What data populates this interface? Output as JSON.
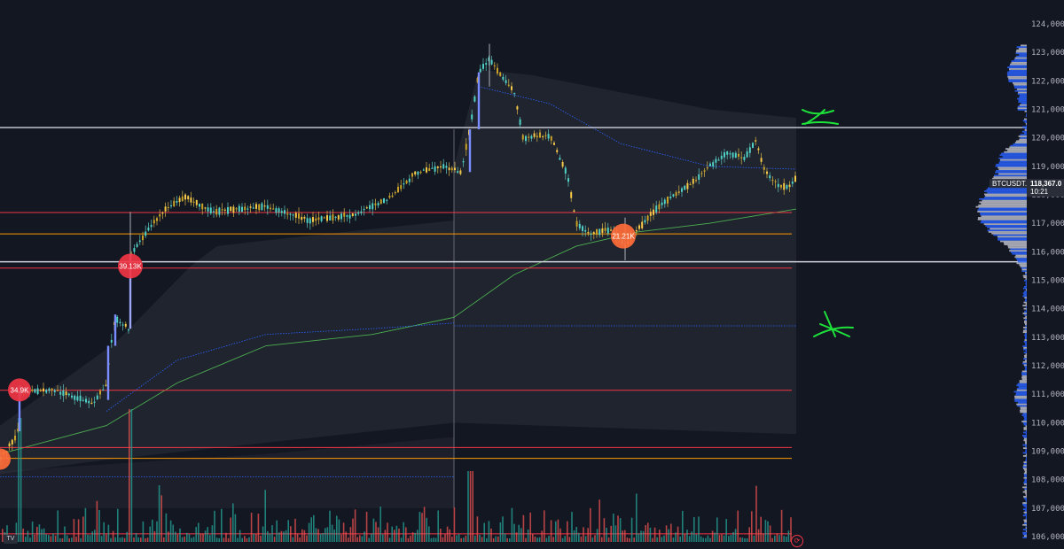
{
  "chart_data": {
    "type": "candlestick",
    "symbol": "BTCUSDT.P",
    "last_price": "118,367.0",
    "countdown": "10:21",
    "y_axis": {
      "min": 105750,
      "max": 124400,
      "ticks": [
        "124,000.0",
        "123,000.0",
        "122,000.0",
        "121,000.0",
        "120,000.0",
        "119,000.0",
        "118,000.0",
        "117,000.0",
        "116,000.0",
        "115,000.0",
        "114,000.0",
        "113,000.0",
        "112,000.0",
        "111,000.0",
        "110,000.0",
        "109,000.0",
        "108,000.0",
        "107,000.0",
        "106,000.0"
      ]
    },
    "price_path": [
      [
        0,
        108700
      ],
      [
        20,
        109600
      ],
      [
        22,
        111100
      ],
      [
        60,
        111150
      ],
      [
        105,
        110700
      ],
      [
        120,
        111300
      ],
      [
        125,
        112700
      ],
      [
        130,
        113700
      ],
      [
        145,
        113300
      ],
      [
        148,
        115900
      ],
      [
        170,
        116900
      ],
      [
        190,
        117600
      ],
      [
        210,
        117900
      ],
      [
        240,
        117400
      ],
      [
        300,
        117600
      ],
      [
        350,
        117100
      ],
      [
        400,
        117300
      ],
      [
        440,
        117900
      ],
      [
        470,
        118800
      ],
      [
        500,
        119000
      ],
      [
        520,
        118800
      ],
      [
        530,
        120300
      ],
      [
        540,
        122300
      ],
      [
        552,
        122800
      ],
      [
        560,
        122400
      ],
      [
        580,
        121600
      ],
      [
        590,
        120000
      ],
      [
        620,
        120100
      ],
      [
        640,
        118700
      ],
      [
        650,
        117000
      ],
      [
        665,
        116600
      ],
      [
        690,
        116800
      ],
      [
        705,
        116200
      ],
      [
        720,
        116800
      ],
      [
        740,
        117500
      ],
      [
        760,
        118000
      ],
      [
        780,
        118400
      ],
      [
        800,
        119000
      ],
      [
        820,
        119500
      ],
      [
        840,
        119300
      ],
      [
        852,
        119900
      ],
      [
        862,
        118900
      ],
      [
        878,
        118300
      ],
      [
        890,
        118300
      ],
      [
        898,
        118600
      ]
    ],
    "horizontal_levels": [
      {
        "price": 120360,
        "color": "#d1d4dc",
        "width": 1.4
      },
      {
        "price": 117380,
        "color": "#f23645",
        "width": 1
      },
      {
        "price": 116630,
        "color": "#ff9800",
        "width": 1
      },
      {
        "price": 115650,
        "color": "#d1d4dc",
        "width": 1.4
      },
      {
        "price": 115430,
        "color": "#f23645",
        "width": 1
      },
      {
        "price": 111140,
        "color": "#f23645",
        "width": 1
      },
      {
        "price": 109130,
        "color": "#f23645",
        "width": 1
      },
      {
        "price": 108750,
        "color": "#ff9800",
        "width": 1
      },
      {
        "price": 106100,
        "color": "#f23645",
        "width": 1
      }
    ],
    "bubbles": [
      {
        "label": "34.9K",
        "x": 22,
        "price": 111150,
        "r": 13,
        "color": "#f23645"
      },
      {
        "label": "39.13K",
        "x": 147,
        "price": 115500,
        "r": 14,
        "color": "#f23645"
      },
      {
        "label": "21.21K",
        "x": 703,
        "price": 116550,
        "r": 14,
        "color": "#ff6d3a"
      },
      {
        "label": "",
        "x": 0,
        "price": 108720,
        "r": 12,
        "color": "#ff6d3a"
      }
    ],
    "annotations": [
      "X",
      "X"
    ],
    "colors": {
      "up": "#26a69a",
      "down": "#ef5350",
      "accent": "#2962ff",
      "vwap": "#4caf50"
    }
  }
}
